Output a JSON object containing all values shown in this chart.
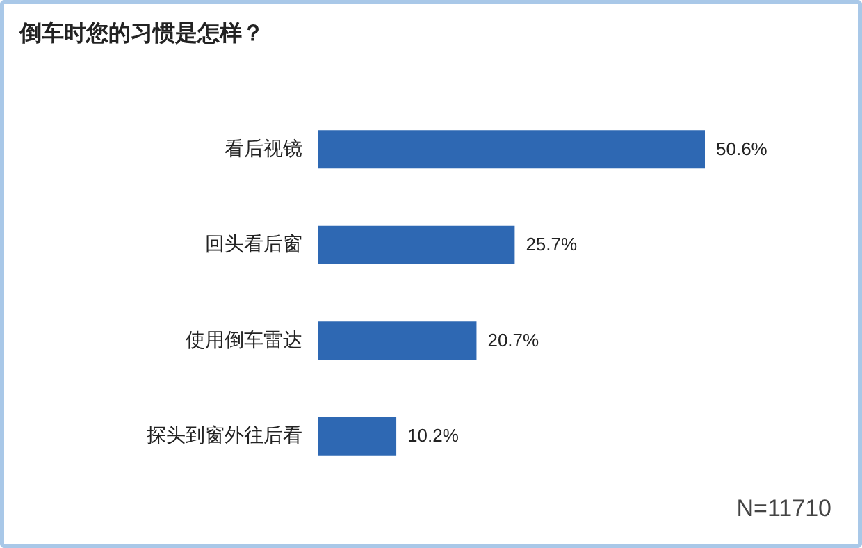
{
  "chart_data": {
    "type": "bar",
    "orientation": "horizontal",
    "title": "倒车时您的习惯是怎样？",
    "categories": [
      "看后视镜",
      "回头看后窗",
      "使用倒车雷达",
      "探头到窗外往后看"
    ],
    "values": [
      50.6,
      25.7,
      20.7,
      10.2
    ],
    "color": "#2e68b3",
    "value_labels": [
      "50.6%",
      "25.7%",
      "20.7%",
      "10.2%"
    ],
    "annotations": [
      "N=11710"
    ]
  }
}
